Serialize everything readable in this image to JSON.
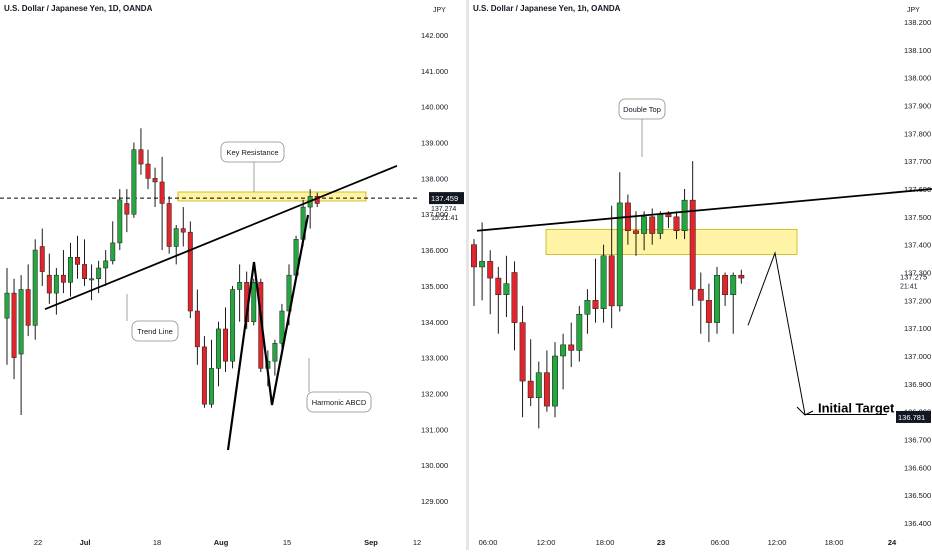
{
  "chart_data": [
    {
      "type": "candlestick",
      "title": "U.S. Dollar / Japanese Yen, 1D, OANDA",
      "currency": "JPY",
      "x_ticks": [
        "22",
        "Jul",
        "18",
        "Aug",
        "15",
        "Sep",
        "12"
      ],
      "y_ticks": [
        "142.000",
        "141.000",
        "140.000",
        "139.000",
        "138.000",
        "137.000",
        "136.000",
        "135.000",
        "134.000",
        "133.000",
        "132.000",
        "131.000",
        "130.000",
        "129.000"
      ],
      "ylim": [
        128.3,
        142.6
      ],
      "price_label": "137.459",
      "price_sub_label": "137.274",
      "countdown": "15:21:41",
      "annotations": [
        "Key Resistance",
        "Trend Line",
        "Harmonic ABCD"
      ],
      "colors": {
        "up": "#26a641",
        "down": "#e0262d",
        "zone": "#fff3a6",
        "zone_border": "#c8b400",
        "line": "#000000"
      },
      "candles": [
        {
          "o": 134.1,
          "h": 135.5,
          "l": 132.8,
          "c": 134.8
        },
        {
          "o": 134.8,
          "h": 135.2,
          "l": 132.4,
          "c": 133.0
        },
        {
          "o": 133.1,
          "h": 135.3,
          "l": 131.4,
          "c": 134.9
        },
        {
          "o": 134.9,
          "h": 135.6,
          "l": 133.6,
          "c": 133.9
        },
        {
          "o": 133.9,
          "h": 136.3,
          "l": 133.5,
          "c": 136.0
        },
        {
          "o": 136.1,
          "h": 136.6,
          "l": 135.0,
          "c": 135.4
        },
        {
          "o": 135.3,
          "h": 135.9,
          "l": 134.5,
          "c": 134.8
        },
        {
          "o": 134.8,
          "h": 135.5,
          "l": 134.2,
          "c": 135.3
        },
        {
          "o": 135.3,
          "h": 136.0,
          "l": 134.8,
          "c": 135.1
        },
        {
          "o": 135.1,
          "h": 136.2,
          "l": 134.7,
          "c": 135.8
        },
        {
          "o": 135.8,
          "h": 136.4,
          "l": 135.2,
          "c": 135.6
        },
        {
          "o": 135.6,
          "h": 136.3,
          "l": 135.0,
          "c": 135.2
        },
        {
          "o": 135.2,
          "h": 135.6,
          "l": 134.6,
          "c": 135.2
        },
        {
          "o": 135.2,
          "h": 135.7,
          "l": 134.8,
          "c": 135.5
        },
        {
          "o": 135.5,
          "h": 136.0,
          "l": 135.0,
          "c": 135.7
        },
        {
          "o": 135.7,
          "h": 136.8,
          "l": 135.6,
          "c": 136.2
        },
        {
          "o": 136.2,
          "h": 137.7,
          "l": 136.0,
          "c": 137.4
        },
        {
          "o": 137.3,
          "h": 137.7,
          "l": 136.5,
          "c": 137.0
        },
        {
          "o": 137.0,
          "h": 139.0,
          "l": 136.9,
          "c": 138.8
        },
        {
          "o": 138.8,
          "h": 139.4,
          "l": 138.1,
          "c": 138.4
        },
        {
          "o": 138.4,
          "h": 138.8,
          "l": 137.7,
          "c": 138.0
        },
        {
          "o": 138.0,
          "h": 138.3,
          "l": 137.2,
          "c": 137.9
        },
        {
          "o": 137.9,
          "h": 138.6,
          "l": 136.0,
          "c": 137.3
        },
        {
          "o": 137.3,
          "h": 137.5,
          "l": 135.9,
          "c": 136.1
        },
        {
          "o": 136.1,
          "h": 136.7,
          "l": 135.6,
          "c": 136.6
        },
        {
          "o": 136.6,
          "h": 137.2,
          "l": 136.1,
          "c": 136.5
        },
        {
          "o": 136.5,
          "h": 136.8,
          "l": 134.1,
          "c": 134.3
        },
        {
          "o": 134.3,
          "h": 134.9,
          "l": 132.8,
          "c": 133.3
        },
        {
          "o": 133.3,
          "h": 133.6,
          "l": 131.6,
          "c": 131.7
        },
        {
          "o": 131.7,
          "h": 133.5,
          "l": 131.6,
          "c": 132.7
        },
        {
          "o": 132.7,
          "h": 134.0,
          "l": 132.2,
          "c": 133.8
        },
        {
          "o": 133.8,
          "h": 134.4,
          "l": 132.6,
          "c": 132.9
        },
        {
          "o": 132.9,
          "h": 135.0,
          "l": 132.7,
          "c": 134.9
        },
        {
          "o": 134.9,
          "h": 135.6,
          "l": 134.0,
          "c": 135.1
        },
        {
          "o": 135.1,
          "h": 135.4,
          "l": 133.8,
          "c": 134.0
        },
        {
          "o": 134.0,
          "h": 135.2,
          "l": 133.9,
          "c": 135.1
        },
        {
          "o": 135.1,
          "h": 135.2,
          "l": 132.6,
          "c": 132.7
        },
        {
          "o": 132.7,
          "h": 133.2,
          "l": 132.2,
          "c": 132.9
        },
        {
          "o": 132.9,
          "h": 133.5,
          "l": 132.5,
          "c": 133.4
        },
        {
          "o": 133.4,
          "h": 134.5,
          "l": 133.1,
          "c": 134.3
        },
        {
          "o": 134.3,
          "h": 135.6,
          "l": 133.9,
          "c": 135.3
        },
        {
          "o": 135.3,
          "h": 136.4,
          "l": 135.1,
          "c": 136.3
        },
        {
          "o": 136.3,
          "h": 137.4,
          "l": 136.1,
          "c": 137.2
        },
        {
          "o": 137.2,
          "h": 137.7,
          "l": 136.6,
          "c": 137.5
        },
        {
          "o": 137.5,
          "h": 137.6,
          "l": 137.2,
          "c": 137.3
        }
      ]
    },
    {
      "type": "candlestick",
      "title": "U.S. Dollar / Japanese Yen, 1h, OANDA",
      "currency": "JPY",
      "x_ticks": [
        "06:00",
        "12:00",
        "18:00",
        "23",
        "06:00",
        "12:00",
        "18:00",
        "24"
      ],
      "y_ticks": [
        "138.200",
        "138.100",
        "138.000",
        "137.900",
        "137.800",
        "137.700",
        "137.600",
        "137.500",
        "137.400",
        "137.300",
        "137.200",
        "137.100",
        "137.000",
        "136.900",
        "136.800",
        "136.700",
        "136.600",
        "136.500",
        "136.400"
      ],
      "ylim": [
        136.35,
        138.25
      ],
      "price_label": "137.275",
      "countdown": "21:41",
      "target_label": "136.781",
      "annotations": [
        "Double Top",
        "Initial Target"
      ],
      "colors": {
        "up": "#26a641",
        "down": "#e0262d",
        "zone": "#fff3a6",
        "zone_border": "#c8b400",
        "line": "#000000"
      },
      "candles": [
        {
          "o": 137.4,
          "h": 137.42,
          "l": 137.18,
          "c": 137.32
        },
        {
          "o": 137.32,
          "h": 137.48,
          "l": 137.2,
          "c": 137.34
        },
        {
          "o": 137.34,
          "h": 137.38,
          "l": 137.15,
          "c": 137.28
        },
        {
          "o": 137.28,
          "h": 137.32,
          "l": 137.08,
          "c": 137.22
        },
        {
          "o": 137.22,
          "h": 137.36,
          "l": 137.14,
          "c": 137.26
        },
        {
          "o": 137.3,
          "h": 137.34,
          "l": 137.02,
          "c": 137.12
        },
        {
          "o": 137.12,
          "h": 137.18,
          "l": 136.78,
          "c": 136.91
        },
        {
          "o": 136.91,
          "h": 137.06,
          "l": 136.82,
          "c": 136.85
        },
        {
          "o": 136.85,
          "h": 136.98,
          "l": 136.74,
          "c": 136.94
        },
        {
          "o": 136.94,
          "h": 137.02,
          "l": 136.8,
          "c": 136.82
        },
        {
          "o": 136.82,
          "h": 137.05,
          "l": 136.78,
          "c": 137.0
        },
        {
          "o": 137.0,
          "h": 137.08,
          "l": 136.88,
          "c": 137.04
        },
        {
          "o": 137.04,
          "h": 137.12,
          "l": 136.96,
          "c": 137.02
        },
        {
          "o": 137.02,
          "h": 137.18,
          "l": 136.98,
          "c": 137.15
        },
        {
          "o": 137.15,
          "h": 137.24,
          "l": 137.08,
          "c": 137.2
        },
        {
          "o": 137.2,
          "h": 137.35,
          "l": 137.12,
          "c": 137.17
        },
        {
          "o": 137.17,
          "h": 137.4,
          "l": 137.12,
          "c": 137.36
        },
        {
          "o": 137.36,
          "h": 137.54,
          "l": 137.1,
          "c": 137.18
        },
        {
          "o": 137.18,
          "h": 137.66,
          "l": 137.16,
          "c": 137.55
        },
        {
          "o": 137.55,
          "h": 137.58,
          "l": 137.4,
          "c": 137.45
        },
        {
          "o": 137.45,
          "h": 137.52,
          "l": 137.36,
          "c": 137.44
        },
        {
          "o": 137.44,
          "h": 137.52,
          "l": 137.38,
          "c": 137.5
        },
        {
          "o": 137.5,
          "h": 137.53,
          "l": 137.4,
          "c": 137.44
        },
        {
          "o": 137.44,
          "h": 137.52,
          "l": 137.42,
          "c": 137.51
        },
        {
          "o": 137.51,
          "h": 137.52,
          "l": 137.46,
          "c": 137.5
        },
        {
          "o": 137.5,
          "h": 137.52,
          "l": 137.42,
          "c": 137.45
        },
        {
          "o": 137.45,
          "h": 137.6,
          "l": 137.42,
          "c": 137.56
        },
        {
          "o": 137.56,
          "h": 137.7,
          "l": 137.18,
          "c": 137.24
        },
        {
          "o": 137.24,
          "h": 137.3,
          "l": 137.08,
          "c": 137.2
        },
        {
          "o": 137.2,
          "h": 137.26,
          "l": 137.05,
          "c": 137.12
        },
        {
          "o": 137.12,
          "h": 137.32,
          "l": 137.08,
          "c": 137.29
        },
        {
          "o": 137.29,
          "h": 137.3,
          "l": 137.18,
          "c": 137.22
        },
        {
          "o": 137.22,
          "h": 137.3,
          "l": 137.08,
          "c": 137.29
        },
        {
          "o": 137.29,
          "h": 137.31,
          "l": 137.26,
          "c": 137.28
        }
      ]
    }
  ]
}
